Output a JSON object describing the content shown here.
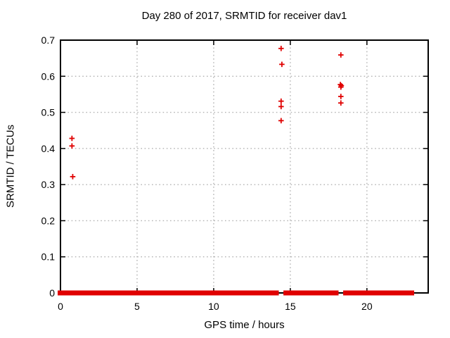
{
  "chart_data": {
    "type": "scatter",
    "title": "Day 280 of 2017, SRMTID for receiver dav1",
    "xlabel": "GPS time / hours",
    "ylabel": "SRMTID / TECUs",
    "xlim": [
      0,
      24
    ],
    "ylim": [
      0,
      0.7
    ],
    "xticks": {
      "values": [
        0,
        5,
        10,
        15,
        20
      ],
      "labels": [
        "0",
        "5",
        "10",
        "15",
        "20"
      ]
    },
    "yticks": {
      "values": [
        0,
        0.1,
        0.2,
        0.3,
        0.4,
        0.5,
        0.6,
        0.7
      ],
      "labels": [
        "0",
        "0.1",
        "0.2",
        "0.3",
        "0.4",
        "0.5",
        "0.6",
        "0.7"
      ]
    },
    "grid": true,
    "grid_style": "dotted",
    "grid_color": "#b3b3b3",
    "legend": "none",
    "marker": "plus",
    "marker_color": "#e00000",
    "border_color": "#000000",
    "points": [
      [
        0.75,
        0.428
      ],
      [
        0.75,
        0.407
      ],
      [
        0.8,
        0.322
      ],
      [
        14.4,
        0.677
      ],
      [
        14.45,
        0.633
      ],
      [
        14.4,
        0.531
      ],
      [
        14.4,
        0.516
      ],
      [
        14.4,
        0.477
      ],
      [
        18.3,
        0.659
      ],
      [
        18.27,
        0.577
      ],
      [
        18.33,
        0.574
      ],
      [
        18.3,
        0.57
      ],
      [
        18.3,
        0.544
      ],
      [
        18.3,
        0.526
      ]
    ],
    "baseline": {
      "y": 0,
      "x_start": 0,
      "x_end": 22.9,
      "gaps": [
        [
          14.25,
          14.55
        ],
        [
          18.15,
          18.45
        ]
      ],
      "note": "dense band of overlapping plus markers at y=0 across nearly the whole day"
    }
  }
}
